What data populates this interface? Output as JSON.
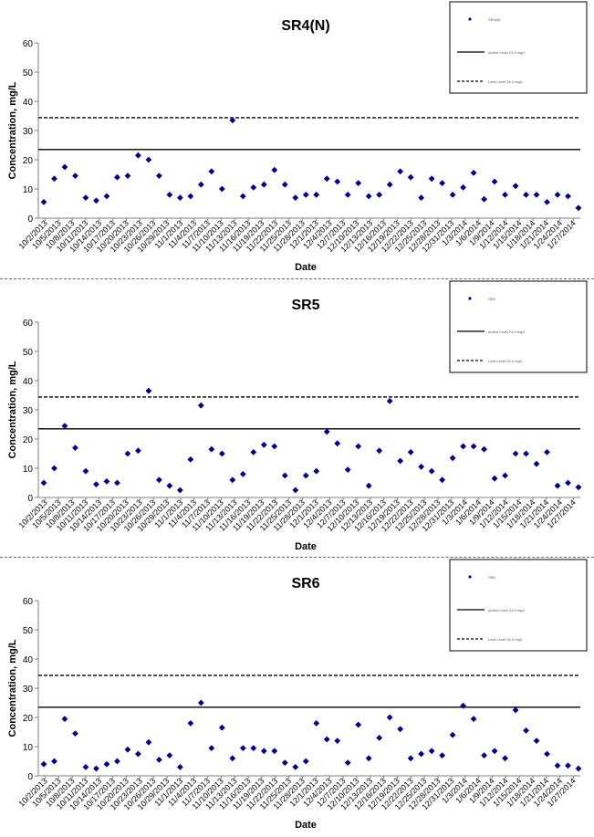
{
  "colors": {
    "marker": "#00008B",
    "line": "#000000",
    "axis": "#808080"
  },
  "chart_data": [
    {
      "type": "scatter",
      "title": "SR4(N)",
      "xlabel": "Date",
      "ylabel": "Concentration, mg/L",
      "ylim": [
        0,
        60
      ],
      "yticks": [
        0,
        10,
        20,
        30,
        40,
        50,
        60
      ],
      "grid": false,
      "legend_position": "top-right",
      "legend": [
        "SR4(N)",
        "Action Level 23.5 mg/L",
        "Limit Level 34.4 mg/L"
      ],
      "x_tick_labels": [
        "10/2/2013",
        "10/5/2013",
        "10/8/2013",
        "10/11/2013",
        "10/14/2013",
        "10/17/2013",
        "10/20/2013",
        "10/23/2013",
        "10/26/2013",
        "10/29/2013",
        "11/1/2013",
        "11/4/2013",
        "11/7/2013",
        "11/10/2013",
        "11/13/2013",
        "11/16/2013",
        "11/19/2013",
        "11/22/2013",
        "11/25/2013",
        "11/28/2013",
        "12/1/2013",
        "12/4/2013",
        "12/7/2013",
        "12/10/2013",
        "12/13/2013",
        "12/16/2013",
        "12/19/2013",
        "12/22/2013",
        "12/25/2013",
        "12/28/2013",
        "12/31/2013",
        "1/3/2014",
        "1/6/2014",
        "1/9/2014",
        "1/12/2014",
        "1/15/2014",
        "1/18/2014",
        "1/21/2014",
        "1/24/2014",
        "1/27/2014"
      ],
      "action_level": 23.5,
      "limit_level": 34.4,
      "values": [
        5.5,
        13.5,
        17.5,
        14.5,
        7,
        6,
        7.5,
        14,
        14.5,
        21.5,
        20,
        14.5,
        8,
        7,
        7.5,
        11.5,
        16,
        10,
        33.5,
        7.5,
        10.5,
        11.5,
        16.5,
        11.5,
        7,
        8,
        8,
        13.5,
        12.5,
        8,
        12,
        7.5,
        8,
        11.5,
        16,
        14,
        7,
        13.5,
        12,
        8,
        10.5,
        15.5,
        6.5,
        12.5,
        8,
        11,
        8,
        8,
        5.5,
        8,
        7.5,
        3.5
      ]
    },
    {
      "type": "scatter",
      "title": "SR5",
      "xlabel": "Date",
      "ylabel": "Concentration, mg/L",
      "ylim": [
        0,
        60
      ],
      "yticks": [
        0,
        10,
        20,
        30,
        40,
        50,
        60
      ],
      "grid": false,
      "legend_position": "top-right",
      "legend": [
        "SR5",
        "Action Level 23.5 mg/L",
        "Limit Level 34.4 mg/L"
      ],
      "x_tick_labels": [
        "10/2/2013",
        "10/5/2013",
        "10/8/2013",
        "10/11/2013",
        "10/14/2013",
        "10/17/2013",
        "10/20/2013",
        "10/23/2013",
        "10/26/2013",
        "10/29/2013",
        "11/1/2013",
        "11/4/2013",
        "11/7/2013",
        "11/10/2013",
        "11/13/2013",
        "11/16/2013",
        "11/19/2013",
        "11/22/2013",
        "11/25/2013",
        "11/28/2013",
        "12/1/2013",
        "12/4/2013",
        "12/7/2013",
        "12/10/2013",
        "12/13/2013",
        "12/16/2013",
        "12/19/2013",
        "12/22/2013",
        "12/25/2013",
        "12/28/2013",
        "12/31/2013",
        "1/3/2014",
        "1/6/2014",
        "1/9/2014",
        "1/12/2014",
        "1/15/2014",
        "1/18/2014",
        "1/21/2014",
        "1/24/2014",
        "1/27/2014"
      ],
      "action_level": 23.5,
      "limit_level": 34.4,
      "values": [
        5,
        10,
        24.5,
        17,
        9,
        4.5,
        5.5,
        5,
        15,
        16,
        36.5,
        6,
        4,
        2.5,
        13,
        31.5,
        16.5,
        15,
        6,
        8,
        15.5,
        18,
        17.5,
        7.5,
        2.5,
        7.5,
        9,
        22.5,
        18.5,
        9.5,
        17.5,
        4,
        16,
        33,
        12.5,
        15.5,
        10.5,
        9,
        6,
        13.5,
        17.5,
        17.5,
        16.5,
        6.5,
        7.5,
        15,
        15,
        11.5,
        15.5,
        4,
        5,
        3.5
      ]
    },
    {
      "type": "scatter",
      "title": "SR6",
      "xlabel": "Date",
      "ylabel": "Concentration, mg/L",
      "ylim": [
        0,
        60
      ],
      "yticks": [
        0,
        10,
        20,
        30,
        40,
        50,
        60
      ],
      "grid": false,
      "legend_position": "top-right",
      "legend": [
        "SR6",
        "Action Level 23.5 mg/L",
        "Limit Level 34.4 mg/L"
      ],
      "x_tick_labels": [
        "10/2/2013",
        "10/5/2013",
        "10/8/2013",
        "10/11/2013",
        "10/14/2013",
        "10/17/2013",
        "10/20/2013",
        "10/23/2013",
        "10/26/2013",
        "10/29/2013",
        "11/1/2013",
        "11/4/2013",
        "11/7/2013",
        "11/10/2013",
        "11/13/2013",
        "11/16/2013",
        "11/19/2013",
        "11/22/2013",
        "11/25/2013",
        "11/28/2013",
        "12/1/2013",
        "12/4/2013",
        "12/7/2013",
        "12/10/2013",
        "12/13/2013",
        "12/16/2013",
        "12/19/2013",
        "12/22/2013",
        "12/25/2013",
        "12/28/2013",
        "12/31/2013",
        "1/3/2014",
        "1/6/2014",
        "1/9/2014",
        "1/12/2014",
        "1/15/2014",
        "1/18/2014",
        "1/21/2014",
        "1/24/2014",
        "1/27/2014"
      ],
      "action_level": 23.5,
      "limit_level": 34.4,
      "values": [
        4,
        5,
        19.5,
        14.5,
        3,
        2.5,
        4,
        5,
        9,
        7.5,
        11.5,
        5.5,
        7,
        3,
        18,
        25,
        9.5,
        16.5,
        6,
        9.5,
        9.5,
        8.5,
        8.5,
        4.5,
        3,
        5,
        18,
        12.5,
        12,
        4.5,
        17.5,
        6,
        13,
        20,
        16,
        6,
        7.5,
        8.5,
        7,
        14,
        24,
        19.5,
        7,
        8.5,
        6,
        22.5,
        15.5,
        12,
        7.5,
        3.5,
        3.5,
        2.5
      ]
    }
  ]
}
